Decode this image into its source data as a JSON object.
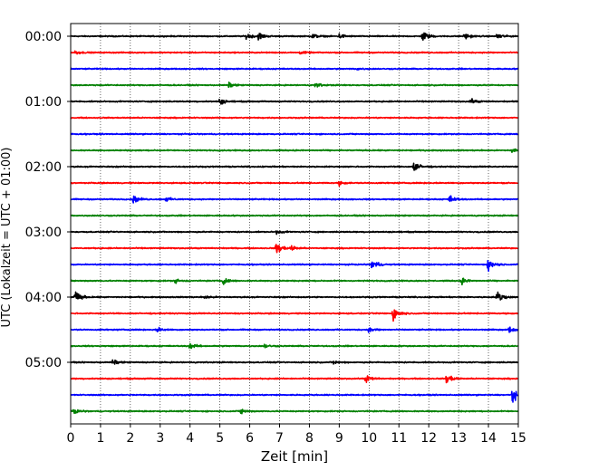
{
  "chart_data": {
    "type": "line",
    "subtype": "helicorder",
    "xlabel": "Zeit  [min]",
    "ylabel": "UTC (Lokalzeit = UTC + 01:00)",
    "xlim": [
      0,
      15
    ],
    "x_ticks": [
      "0",
      "1",
      "2",
      "3",
      "4",
      "5",
      "6",
      "7",
      "8",
      "9",
      "10",
      "11",
      "12",
      "13",
      "14",
      "15"
    ],
    "y_ticks": [
      "00:00",
      "01:00",
      "02:00",
      "03:00",
      "04:00",
      "05:00"
    ],
    "grid": "vertical-dotted",
    "trace_colors": [
      "#000000",
      "#ff0000",
      "#0000ff",
      "#008000"
    ],
    "trace_start_times": [
      "00:00",
      "00:15",
      "00:30",
      "00:45",
      "01:00",
      "01:15",
      "01:30",
      "01:45",
      "02:00",
      "02:15",
      "02:30",
      "02:45",
      "03:00",
      "03:15",
      "03:30",
      "03:45",
      "04:00",
      "04:15",
      "04:30",
      "04:45",
      "05:00",
      "05:15",
      "05:30",
      "05:45"
    ],
    "events": [
      {
        "trace": 0,
        "minute": 5.9,
        "amp": 0.5
      },
      {
        "trace": 0,
        "minute": 6.3,
        "amp": 0.6
      },
      {
        "trace": 0,
        "minute": 8.1,
        "amp": 0.4
      },
      {
        "trace": 0,
        "minute": 9.0,
        "amp": 0.4
      },
      {
        "trace": 0,
        "minute": 11.8,
        "amp": 0.9
      },
      {
        "trace": 0,
        "minute": 13.2,
        "amp": 0.5
      },
      {
        "trace": 0,
        "minute": 14.3,
        "amp": 0.5
      },
      {
        "trace": 1,
        "minute": 0.15,
        "amp": 0.3
      },
      {
        "trace": 1,
        "minute": 7.7,
        "amp": 0.2
      },
      {
        "trace": 2,
        "minute": 9.6,
        "amp": 0.15
      },
      {
        "trace": 3,
        "minute": 5.3,
        "amp": 0.35
      },
      {
        "trace": 3,
        "minute": 8.2,
        "amp": 0.35
      },
      {
        "trace": 4,
        "minute": 5.0,
        "amp": 0.5
      },
      {
        "trace": 4,
        "minute": 13.4,
        "amp": 0.4
      },
      {
        "trace": 7,
        "minute": 14.8,
        "amp": 0.4
      },
      {
        "trace": 8,
        "minute": 11.5,
        "amp": 0.9
      },
      {
        "trace": 9,
        "minute": 9.0,
        "amp": 0.3
      },
      {
        "trace": 10,
        "minute": 2.1,
        "amp": 0.6
      },
      {
        "trace": 10,
        "minute": 3.2,
        "amp": 0.35
      },
      {
        "trace": 10,
        "minute": 12.7,
        "amp": 0.6
      },
      {
        "trace": 12,
        "minute": 6.9,
        "amp": 0.3
      },
      {
        "trace": 13,
        "minute": 6.9,
        "amp": 1.1
      },
      {
        "trace": 13,
        "minute": 7.4,
        "amp": 0.4
      },
      {
        "trace": 14,
        "minute": 10.1,
        "amp": 0.8
      },
      {
        "trace": 14,
        "minute": 14.0,
        "amp": 1.0
      },
      {
        "trace": 15,
        "minute": 3.5,
        "amp": 0.35
      },
      {
        "trace": 15,
        "minute": 5.1,
        "amp": 0.5
      },
      {
        "trace": 15,
        "minute": 13.1,
        "amp": 0.5
      },
      {
        "trace": 16,
        "minute": 0.15,
        "amp": 1.0
      },
      {
        "trace": 16,
        "minute": 4.5,
        "amp": 0.3
      },
      {
        "trace": 16,
        "minute": 14.3,
        "amp": 1.0
      },
      {
        "trace": 17,
        "minute": 10.8,
        "amp": 1.2
      },
      {
        "trace": 18,
        "minute": 2.9,
        "amp": 0.35
      },
      {
        "trace": 18,
        "minute": 10.0,
        "amp": 0.4
      },
      {
        "trace": 18,
        "minute": 14.7,
        "amp": 0.4
      },
      {
        "trace": 19,
        "minute": 4.0,
        "amp": 0.5
      },
      {
        "trace": 19,
        "minute": 6.5,
        "amp": 0.3
      },
      {
        "trace": 20,
        "minute": 1.4,
        "amp": 0.4
      },
      {
        "trace": 20,
        "minute": 8.8,
        "amp": 0.3
      },
      {
        "trace": 21,
        "minute": 9.9,
        "amp": 0.6
      },
      {
        "trace": 21,
        "minute": 12.6,
        "amp": 0.9
      },
      {
        "trace": 22,
        "minute": 14.8,
        "amp": 1.1
      },
      {
        "trace": 23,
        "minute": 0.1,
        "amp": 0.4
      },
      {
        "trace": 23,
        "minute": 5.7,
        "amp": 0.4
      }
    ]
  }
}
